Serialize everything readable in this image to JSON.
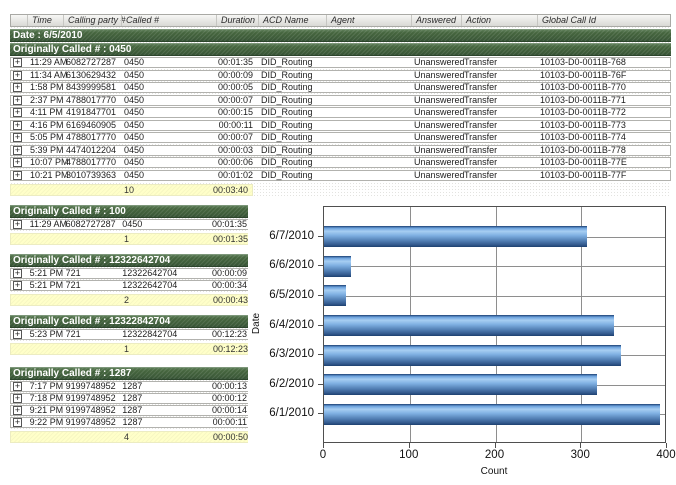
{
  "report": {
    "columns": [
      "",
      "Time",
      "Calling party #",
      "Called #",
      "Duration",
      "ACD Name",
      "Agent",
      "Answered",
      "Action",
      "Global Call Id"
    ],
    "date_band": "Date : 6/5/2010",
    "main_group": {
      "header": "Originally Called # : 0450",
      "rows": [
        [
          "11:29 AM",
          "6082727287",
          "0450",
          "00:01:35",
          "DID_Routing",
          "",
          "Unanswered",
          "Transfer",
          "10103-D0-0011B-768"
        ],
        [
          "11:34 AM",
          "6130629432",
          "0450",
          "00:00:09",
          "DID_Routing",
          "",
          "Unanswered",
          "Transfer",
          "10103-D0-0011B-76F"
        ],
        [
          "1:58 PM",
          "8439999581",
          "0450",
          "00:00:05",
          "DID_Routing",
          "",
          "Unanswered",
          "Transfer",
          "10103-D0-0011B-770"
        ],
        [
          "2:37 PM",
          "4788017770",
          "0450",
          "00:00:07",
          "DID_Routing",
          "",
          "Unanswered",
          "Transfer",
          "10103-D0-0011B-771"
        ],
        [
          "4:11 PM",
          "4191847701",
          "0450",
          "00:00:15",
          "DID_Routing",
          "",
          "Unanswered",
          "Transfer",
          "10103-D0-0011B-772"
        ],
        [
          "4:16 PM",
          "6169460905",
          "0450",
          "00:00:11",
          "DID_Routing",
          "",
          "Unanswered",
          "Transfer",
          "10103-D0-0011B-773"
        ],
        [
          "5:05 PM",
          "4788017770",
          "0450",
          "00:00:07",
          "DID_Routing",
          "",
          "Unanswered",
          "Transfer",
          "10103-D0-0011B-774"
        ],
        [
          "5:39 PM",
          "4474012204",
          "0450",
          "00:00:03",
          "DID_Routing",
          "",
          "Unanswered",
          "Transfer",
          "10103-D0-0011B-778"
        ],
        [
          "10:07 PM",
          "4788017770",
          "0450",
          "00:00:06",
          "DID_Routing",
          "",
          "Unanswered",
          "Transfer",
          "10103-D0-0011B-77E"
        ],
        [
          "10:21 PM",
          "3010739363",
          "0450",
          "00:01:02",
          "DID_Routing",
          "",
          "Unanswered",
          "Transfer",
          "10103-D0-0011B-77F"
        ]
      ],
      "summary": {
        "count": "10",
        "total_duration": "00:03:40"
      }
    },
    "sub_groups": [
      {
        "header": "Originally Called # : 100",
        "rows": [
          [
            "11:29 AM",
            "6082727287",
            "0450",
            "00:01:35"
          ]
        ],
        "summary": {
          "count": "1",
          "total_duration": "00:01:35"
        }
      },
      {
        "header": "Originally Called # : 12322642704",
        "rows": [
          [
            "5:21 PM",
            "721",
            "12322642704",
            "00:00:09"
          ],
          [
            "5:21 PM",
            "721",
            "12322642704",
            "00:00:34"
          ]
        ],
        "summary": {
          "count": "2",
          "total_duration": "00:00:43"
        }
      },
      {
        "header": "Originally Called # : 12322842704",
        "rows": [
          [
            "5:23 PM",
            "721",
            "12322842704",
            "00:12:23"
          ]
        ],
        "summary": {
          "count": "1",
          "total_duration": "00:12:23"
        }
      },
      {
        "header": "Originally Called # : 1287",
        "rows": [
          [
            "7:17 PM",
            "9199748952",
            "1287",
            "00:00:13"
          ],
          [
            "7:18 PM",
            "9199748952",
            "1287",
            "00:00:12"
          ],
          [
            "9:21 PM",
            "9199748952",
            "1287",
            "00:00:14"
          ],
          [
            "9:22 PM",
            "9199748952",
            "1287",
            "00:00:11"
          ]
        ],
        "summary": {
          "count": "4",
          "total_duration": "00:00:50"
        }
      }
    ],
    "expand_icon_glyph": "+"
  },
  "chart_data": {
    "type": "bar",
    "orientation": "horizontal",
    "categories": [
      "6/7/2010",
      "6/6/2010",
      "6/5/2010",
      "6/4/2010",
      "6/3/2010",
      "6/2/2010",
      "6/1/2010"
    ],
    "values": [
      308,
      32,
      26,
      340,
      348,
      320,
      394
    ],
    "title": "",
    "xlabel": "Count",
    "ylabel": "Date",
    "xlim": [
      0,
      400
    ],
    "xticks": [
      0,
      100,
      200,
      300,
      400
    ],
    "grid": true,
    "legend": false,
    "bar_gradient_top": "#a7cef2",
    "bar_gradient_bottom": "#1d4070"
  },
  "colors": {
    "group_header_green": "#3e5c3a",
    "summary_yellow": "#ffffc9",
    "column_header_gray": "#e9e9e6",
    "grid_gray": "#8e8e8e"
  }
}
